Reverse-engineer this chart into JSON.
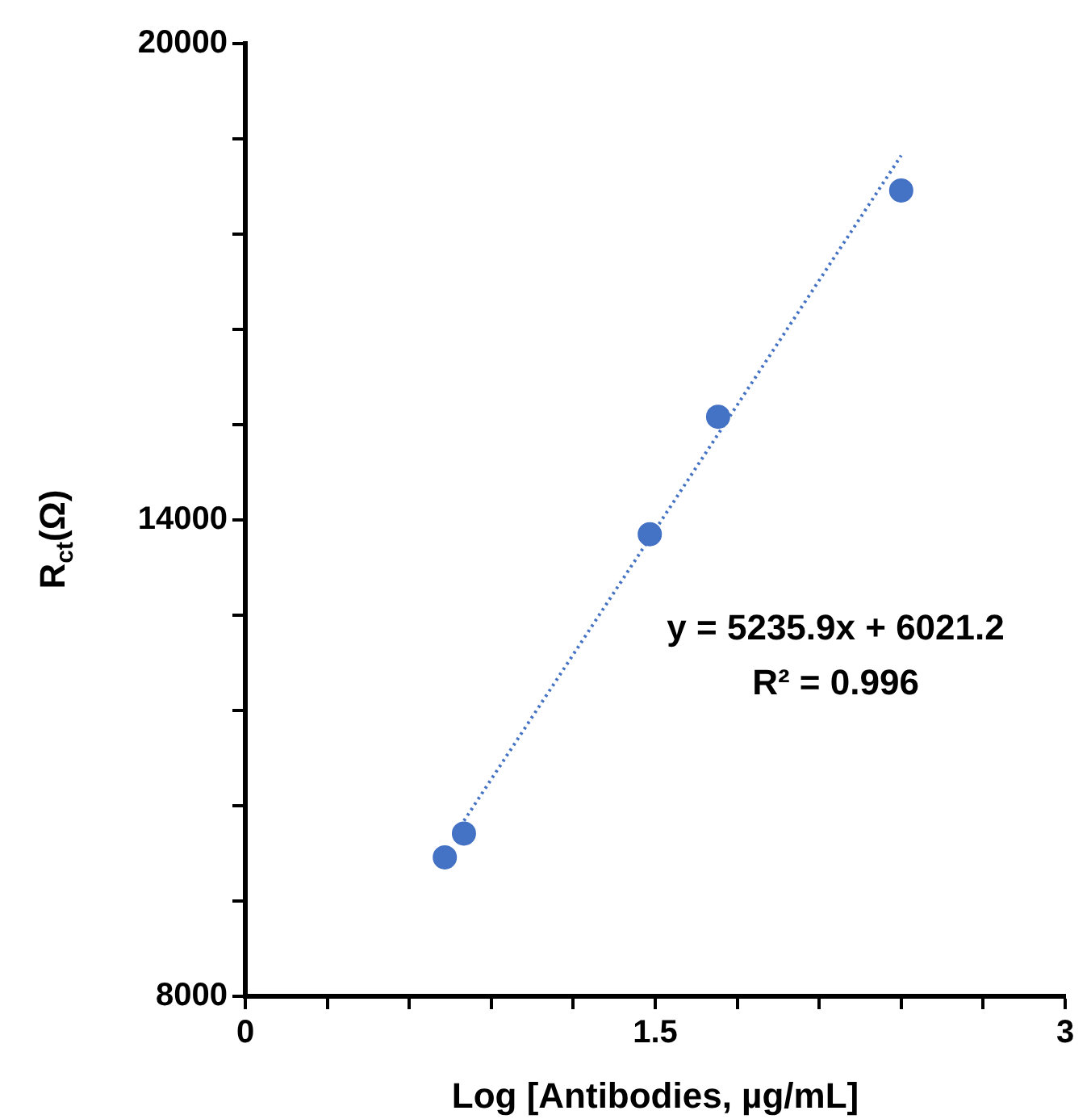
{
  "chart_data": {
    "type": "scatter",
    "xlabel": "Log [Antibodies, µg/mL]",
    "ylabel": "R$_{ct}$(Ω)",
    "xlim": [
      0,
      3
    ],
    "xticks": [
      0,
      {
        "value": 0.3,
        "label": null
      },
      {
        "value": 0.6,
        "label": null
      },
      {
        "value": 0.9,
        "label": null
      },
      {
        "value": 1.2,
        "label": null
      },
      1.5,
      {
        "value": 1.8,
        "label": null
      },
      {
        "value": 2.1,
        "label": null
      },
      {
        "value": 2.4,
        "label": null
      },
      {
        "value": 2.7,
        "label": null
      },
      3
    ],
    "ylim": [
      8000,
      20000
    ],
    "yticks": [
      8000,
      {
        "value": 9200,
        "label": null
      },
      {
        "value": 10400,
        "label": null
      },
      {
        "value": 11600,
        "label": null
      },
      {
        "value": 12800,
        "label": null
      },
      14000,
      {
        "value": 15200,
        "label": null
      },
      {
        "value": 16400,
        "label": null
      },
      {
        "value": 17600,
        "label": null
      },
      {
        "value": 18800,
        "label": null
      },
      20000
    ],
    "grid": false,
    "legend": false,
    "marker": "circle",
    "series": [
      {
        "type": "scatter",
        "color": "#4472c4",
        "x": [
          0.73,
          0.8,
          1.48,
          1.73,
          2.4
        ],
        "values": [
          9750,
          10050,
          13820,
          15300,
          18150
        ]
      },
      {
        "type": "line",
        "color": "#4472c4",
        "line_style": "dotted",
        "marker": "none",
        "x": [
          0.8,
          2.4
        ],
        "values": [
          10210,
          18590
        ]
      }
    ],
    "annotations": [
      "y = 5235.9x + 6021.2",
      "R² = 0.996"
    ]
  }
}
